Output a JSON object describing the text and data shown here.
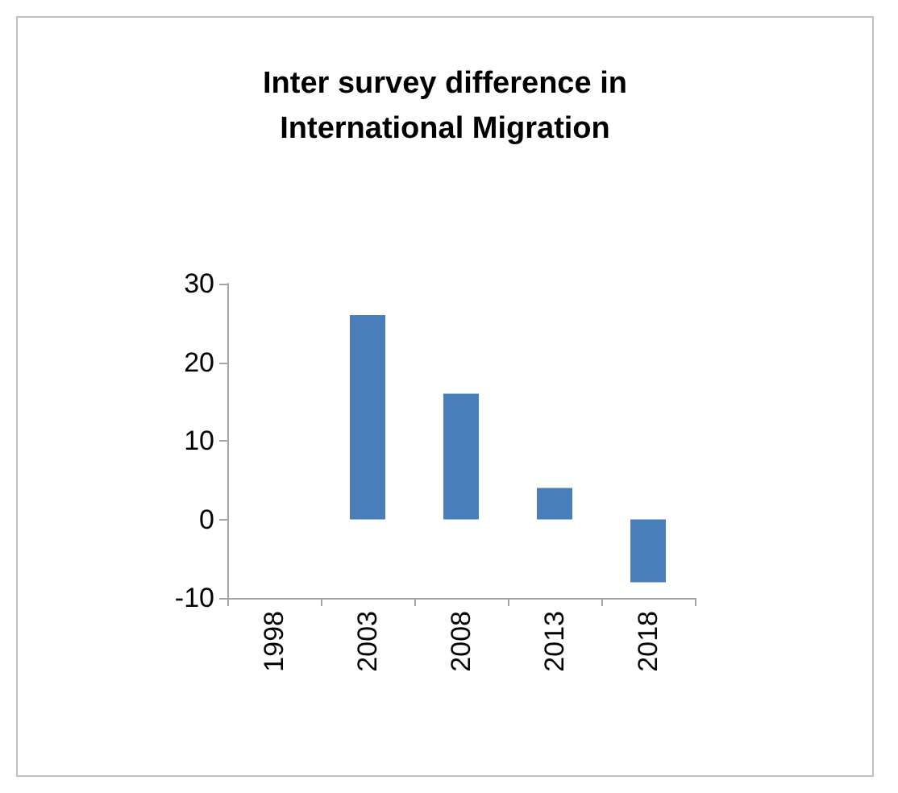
{
  "chart_data": {
    "type": "bar",
    "title": "Inter survey difference in\nInternational Migration",
    "categories": [
      "1998",
      "2003",
      "2008",
      "2013",
      "2018"
    ],
    "values": [
      null,
      26,
      16,
      4,
      -8
    ],
    "color": "#4a7ebb",
    "ylim": [
      -10,
      30
    ],
    "yticks": [
      -10,
      0,
      10,
      20,
      30
    ],
    "grid": false
  }
}
